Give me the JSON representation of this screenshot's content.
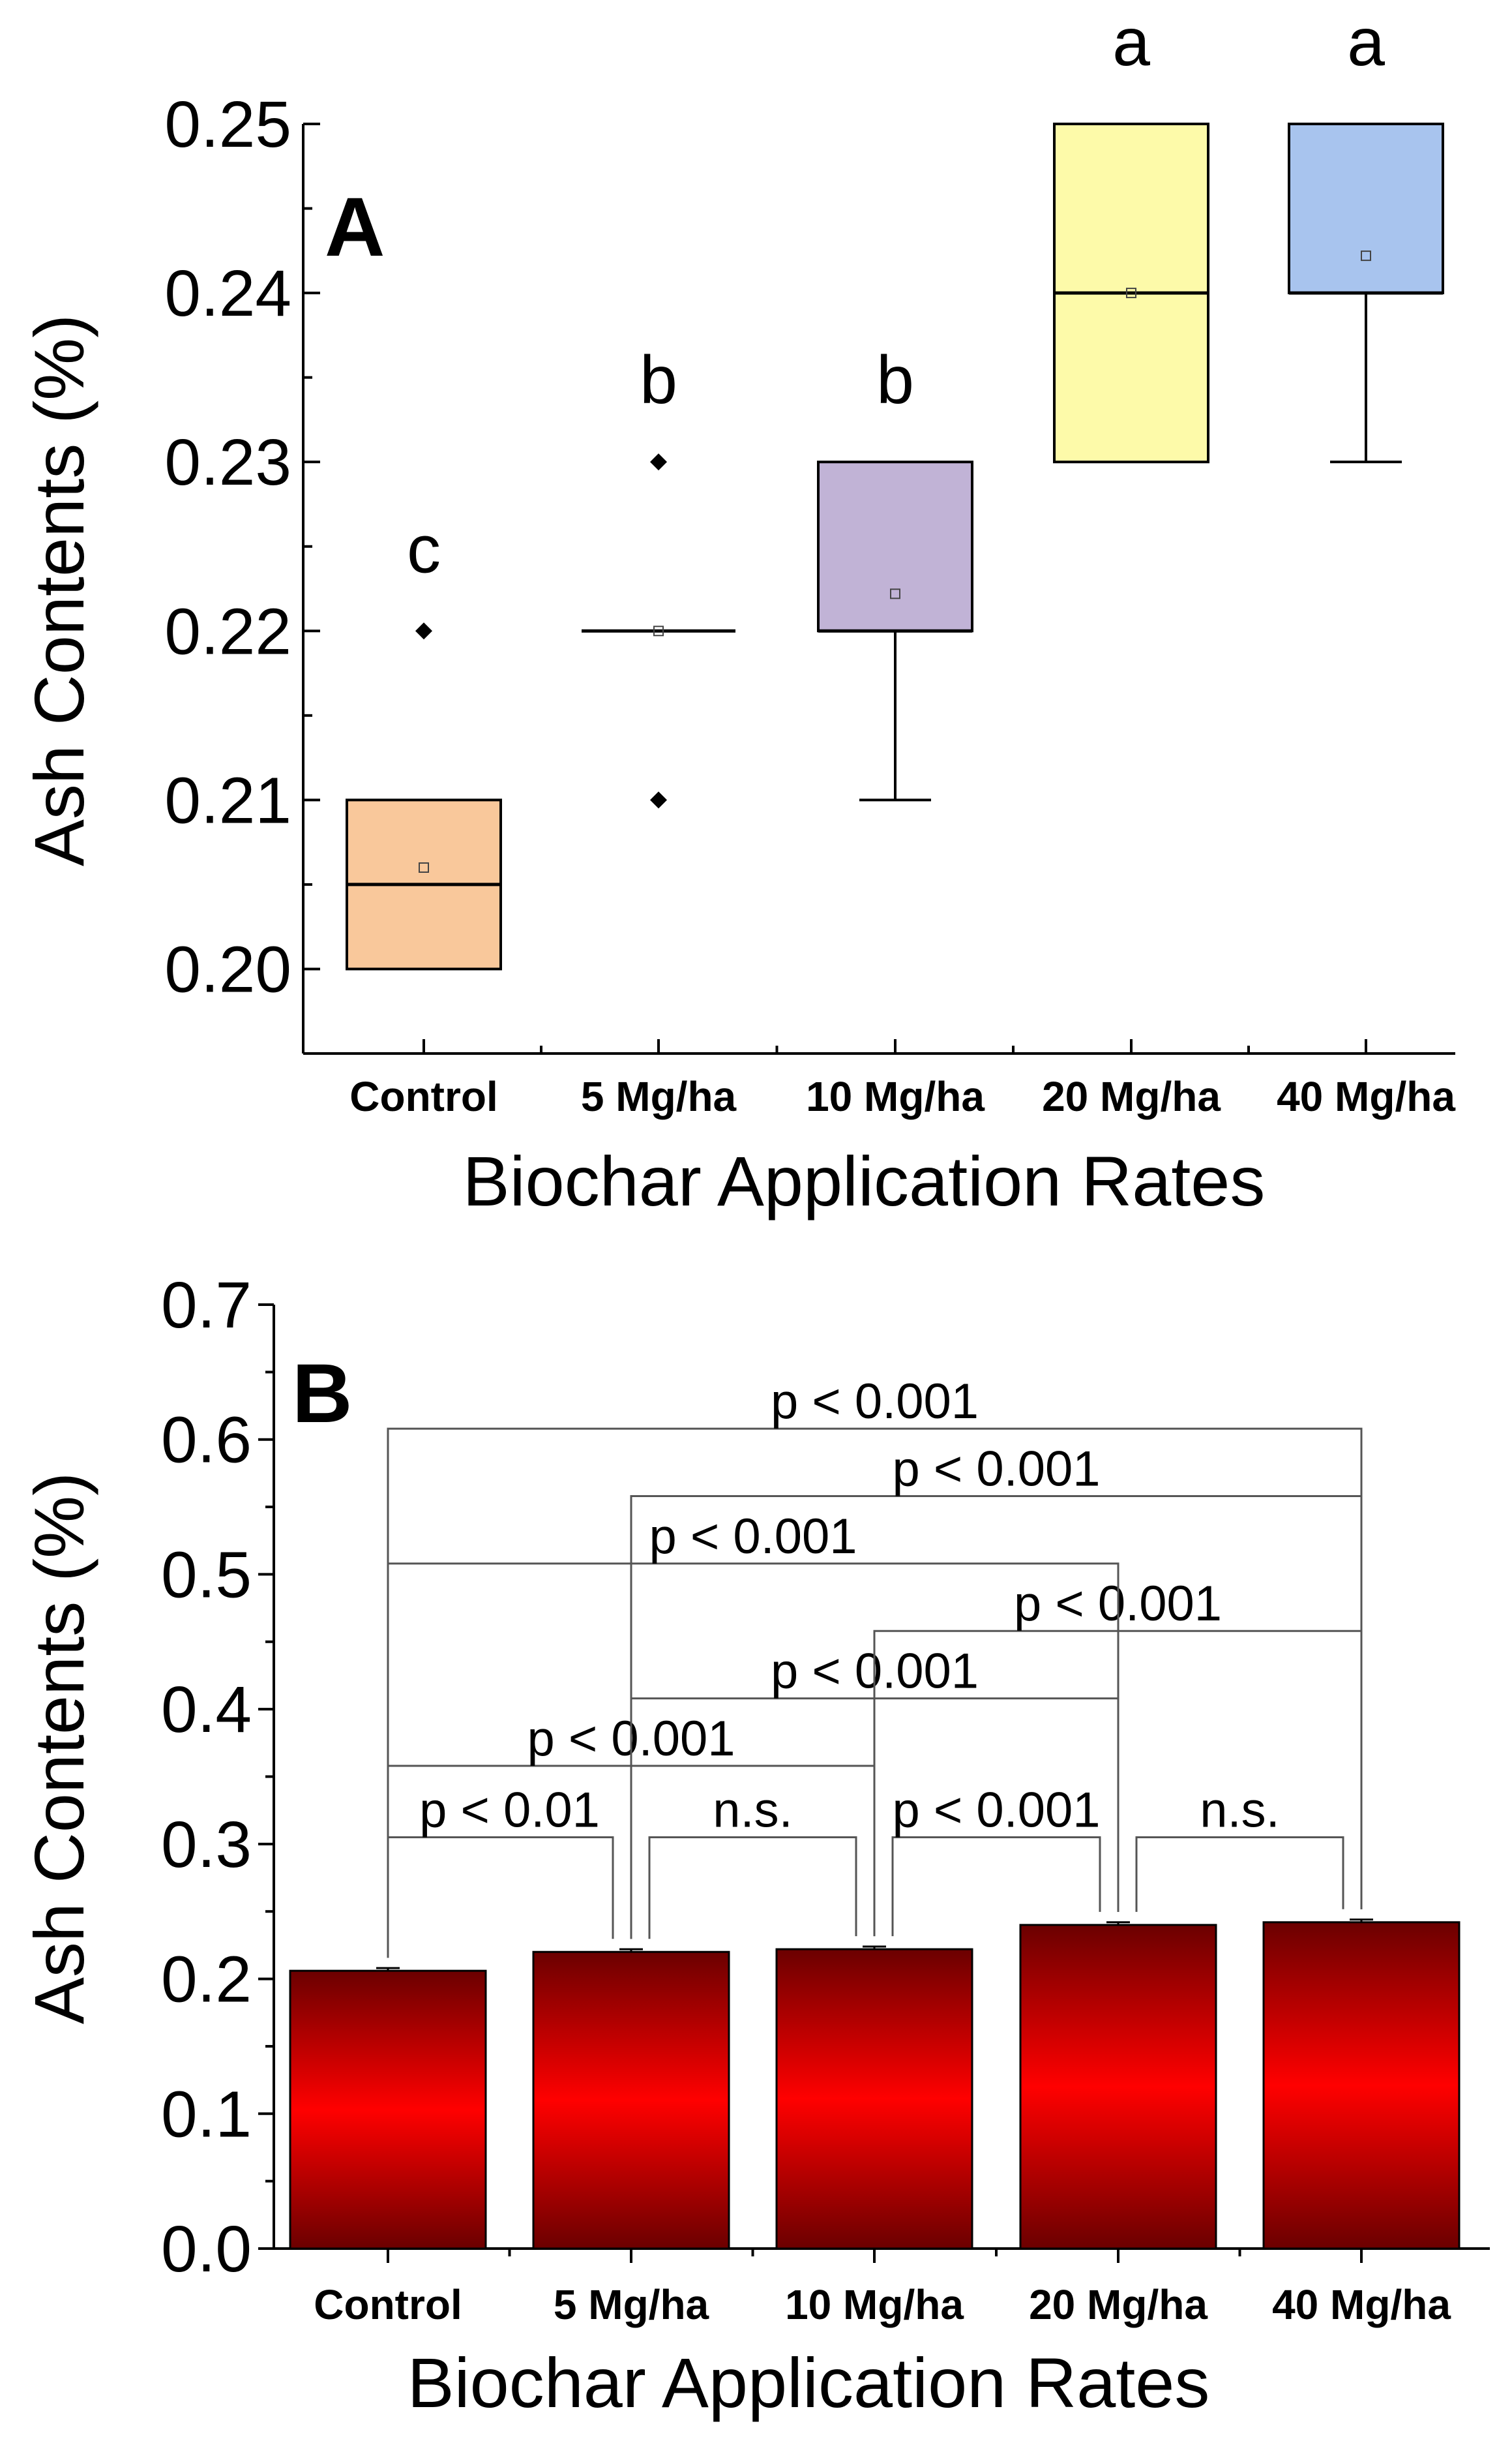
{
  "chart_data": [
    {
      "panel": "A",
      "type": "box",
      "xlabel": "Biochar Application Rates",
      "ylabel": "Ash Contents (%)",
      "ylim": [
        0.195,
        0.25
      ],
      "yticks": [
        0.2,
        0.21,
        0.22,
        0.23,
        0.24,
        0.25
      ],
      "ytick_labels": [
        "0.20",
        "0.21",
        "0.22",
        "0.23",
        "0.24",
        "0.25"
      ],
      "categories": [
        "Control",
        "5 Mg/ha",
        "10 Mg/ha",
        "20 Mg/ha",
        "40 Mg/ha"
      ],
      "boxes": [
        {
          "q1": 0.2,
          "median": 0.205,
          "q3": 0.21,
          "mean": 0.206,
          "whisker_low": 0.2,
          "whisker_high": 0.21,
          "outliers": [
            0.22
          ],
          "color": "#F9C89B",
          "letter": "c"
        },
        {
          "q1": 0.22,
          "median": 0.22,
          "q3": 0.22,
          "mean": 0.22,
          "whisker_low": 0.22,
          "whisker_high": 0.22,
          "outliers": [
            0.21,
            0.23
          ],
          "color": "#F9C89B",
          "letter": "b"
        },
        {
          "q1": 0.22,
          "median": 0.22,
          "q3": 0.23,
          "mean": 0.2222,
          "whisker_low": 0.21,
          "whisker_high": 0.23,
          "outliers": [],
          "color": "#C1B3D6",
          "letter": "b"
        },
        {
          "q1": 0.23,
          "median": 0.24,
          "q3": 0.25,
          "mean": 0.24,
          "whisker_low": 0.23,
          "whisker_high": 0.25,
          "outliers": [],
          "color": "#FDFAA9",
          "letter": "a"
        },
        {
          "q1": 0.24,
          "median": 0.24,
          "q3": 0.25,
          "mean": 0.2422,
          "whisker_low": 0.23,
          "whisker_high": 0.25,
          "outliers": [],
          "color": "#A8C4EE",
          "letter": "a"
        }
      ]
    },
    {
      "panel": "B",
      "type": "bar",
      "xlabel": "Biochar Application Rates",
      "ylabel": "Ash Contents (%)",
      "ylim": [
        0.0,
        0.7
      ],
      "yticks": [
        0.0,
        0.1,
        0.2,
        0.3,
        0.4,
        0.5,
        0.6,
        0.7
      ],
      "ytick_labels": [
        "0.0",
        "0.1",
        "0.2",
        "0.3",
        "0.4",
        "0.5",
        "0.6",
        "0.7"
      ],
      "categories": [
        "Control",
        "5 Mg/ha",
        "10 Mg/ha",
        "20 Mg/ha",
        "40 Mg/ha"
      ],
      "values": [
        0.206,
        0.22,
        0.222,
        0.24,
        0.242
      ],
      "errors": [
        0.002,
        0.002,
        0.002,
        0.002,
        0.002
      ],
      "bar_color_dark": "#6B0000",
      "bar_color_bright": "#FF0000",
      "comparisons": [
        {
          "from": 0,
          "to": 1,
          "label": "p < 0.01",
          "y": 0.305
        },
        {
          "from": 1,
          "to": 2,
          "label": "n.s.",
          "y": 0.305
        },
        {
          "from": 2,
          "to": 3,
          "label": "p < 0.001",
          "y": 0.305
        },
        {
          "from": 3,
          "to": 4,
          "label": "n.s.",
          "y": 0.305
        },
        {
          "from": 0,
          "to": 2,
          "label": "p < 0.001",
          "y": 0.358
        },
        {
          "from": 1,
          "to": 3,
          "label": "p < 0.001",
          "y": 0.408
        },
        {
          "from": 2,
          "to": 4,
          "label": "p < 0.001",
          "y": 0.458
        },
        {
          "from": 0,
          "to": 3,
          "label": "p < 0.001",
          "y": 0.508
        },
        {
          "from": 1,
          "to": 4,
          "label": "p < 0.001",
          "y": 0.558
        },
        {
          "from": 0,
          "to": 4,
          "label": "p < 0.001",
          "y": 0.608
        }
      ]
    }
  ]
}
